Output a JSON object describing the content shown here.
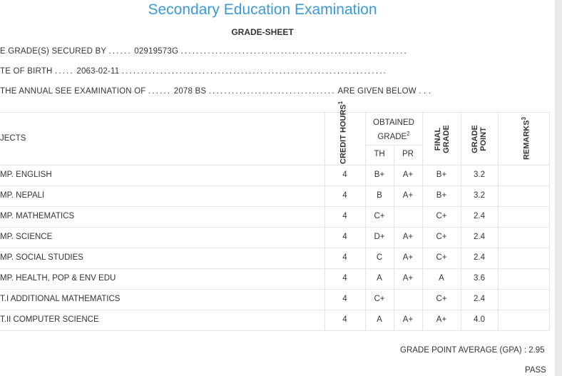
{
  "header": {
    "title": "Secondary Education Examination",
    "subtitle": "GRADE-SHEET"
  },
  "info": {
    "line1_label": "E GRADE(S) SECURED BY",
    "line1_dots": "......",
    "line1_value": "02919573G",
    "line1_trail": "...........................................................",
    "line2_label": "TE OF BIRTH",
    "line2_dots": ".....",
    "line2_value": "2063-02-11",
    "line2_trail": ".....................................................................",
    "line3_label": "THE ANNUAL SEE EXAMINATION OF",
    "line3_dots": "......",
    "line3_value": "2078 BS",
    "line3_trail": ".................................",
    "line3_end": "ARE GIVEN BELOW . . ."
  },
  "table": {
    "col_subjects": "JECTS",
    "col_credit": "CREDIT HOURS",
    "col_credit_sup": "1",
    "col_obtained": "OBTAINED GRADE",
    "col_obtained_sup": "2",
    "col_th": "TH",
    "col_pr": "PR",
    "col_final": "FINAL GRADE",
    "col_gp": "GRADE POINT",
    "col_remarks": "REMARKS",
    "col_remarks_sup": "3",
    "rows": [
      {
        "subject": "MP. ENGLISH",
        "credit": "4",
        "th": "B+",
        "pr": "A+",
        "final": "B+",
        "gp": "3.2",
        "remarks": ""
      },
      {
        "subject": "MP. NEPALI",
        "credit": "4",
        "th": "B",
        "pr": "A+",
        "final": "B+",
        "gp": "3.2",
        "remarks": ""
      },
      {
        "subject": "MP. MATHEMATICS",
        "credit": "4",
        "th": "C+",
        "pr": "",
        "final": "C+",
        "gp": "2.4",
        "remarks": ""
      },
      {
        "subject": "MP. SCIENCE",
        "credit": "4",
        "th": "D+",
        "pr": "A+",
        "final": "C+",
        "gp": "2.4",
        "remarks": ""
      },
      {
        "subject": "MP. SOCIAL STUDIES",
        "credit": "4",
        "th": "C",
        "pr": "A+",
        "final": "C+",
        "gp": "2.4",
        "remarks": ""
      },
      {
        "subject": "MP. HEALTH, POP & ENV EDU",
        "credit": "4",
        "th": "A",
        "pr": "A+",
        "final": "A",
        "gp": "3.6",
        "remarks": ""
      },
      {
        "subject": "T.I ADDITIONAL MATHEMATICS",
        "credit": "4",
        "th": "C+",
        "pr": "",
        "final": "C+",
        "gp": "2.4",
        "remarks": ""
      },
      {
        "subject": "T.II COMPUTER SCIENCE",
        "credit": "4",
        "th": "A",
        "pr": "A+",
        "final": "A+",
        "gp": "4.0",
        "remarks": ""
      }
    ]
  },
  "summary": {
    "gpa_label": "GRADE POINT AVERAGE (GPA) :",
    "gpa_value": "2.95",
    "result": "PASS"
  },
  "colors": {
    "title": "#3a9ad9",
    "grid": "#e6e6e6"
  }
}
